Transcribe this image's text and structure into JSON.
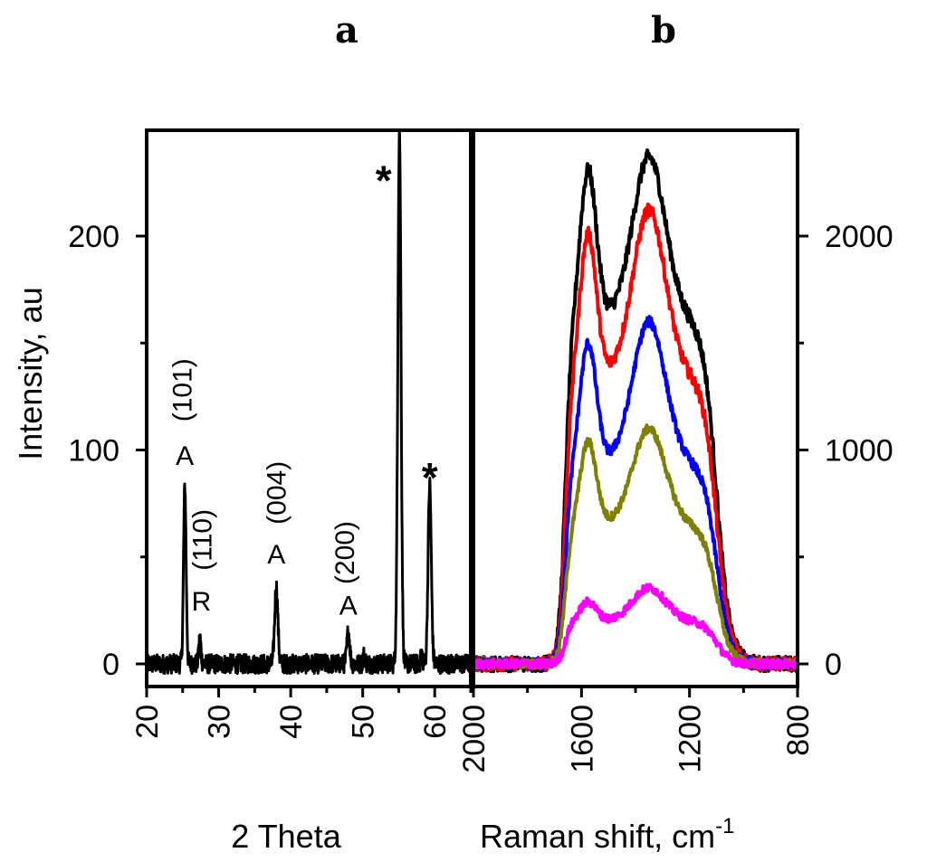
{
  "chart_data": [
    {
      "type": "line",
      "panel_label": "a",
      "xlabel": "2 Theta",
      "ylabel": "Intensity, au",
      "xlim": [
        20,
        65
      ],
      "ylim": [
        -10,
        250
      ],
      "xticks": [
        20,
        30,
        40,
        50,
        60
      ],
      "yticks": [
        0,
        100,
        200
      ],
      "grid": false,
      "series": [
        {
          "color": "#000000",
          "peaks": [
            {
              "x": 25.3,
              "y": 83
            },
            {
              "x": 27.4,
              "y": 12
            },
            {
              "x": 38.0,
              "y": 36
            },
            {
              "x": 48.0,
              "y": 15
            },
            {
              "x": 55.1,
              "y": 250
            },
            {
              "x": 59.3,
              "y": 84
            }
          ]
        }
      ],
      "annotations": [
        {
          "text": "A",
          "x": 25.3,
          "y": 93
        },
        {
          "text": "(101)",
          "x": 26.2,
          "y": 128,
          "rotated": true
        },
        {
          "text": "R",
          "x": 27.6,
          "y": 25
        },
        {
          "text": "(110)",
          "x": 29.0,
          "y": 58,
          "rotated": true
        },
        {
          "text": "A",
          "x": 38.0,
          "y": 47
        },
        {
          "text": "(004)",
          "x": 39.3,
          "y": 80,
          "rotated": true
        },
        {
          "text": "A",
          "x": 48.0,
          "y": 23
        },
        {
          "text": "(200)",
          "x": 48.8,
          "y": 52,
          "rotated": true
        },
        {
          "text": "*",
          "x": 52.9,
          "y": 232
        },
        {
          "text": "*",
          "x": 59.3,
          "y": 93
        }
      ]
    },
    {
      "type": "line",
      "panel_label": "b",
      "xlabel": "Raman shift, cm",
      "xlabel_superscript": "-1",
      "xlim": [
        2000,
        800
      ],
      "ylim": [
        -100,
        2500
      ],
      "xticks": [
        2000,
        1600,
        1200,
        800
      ],
      "yticks": [
        0,
        1000,
        2000
      ],
      "y_axis_side": "right",
      "grid": false,
      "series": [
        {
          "color": "#000000",
          "d_peak": 2310,
          "valley": 1880,
          "g_peak": 2370
        },
        {
          "color": "#ff0000",
          "d_peak": 2010,
          "valley": 1570,
          "g_peak": 2120
        },
        {
          "color": "#0000ff",
          "d_peak": 1500,
          "valley": 1100,
          "g_peak": 1600
        },
        {
          "color": "#808000",
          "d_peak": 1040,
          "valley": 760,
          "g_peak": 1100
        },
        {
          "color": "#ff00ff",
          "d_peak": 290,
          "valley": 235,
          "g_peak": 355
        }
      ]
    }
  ]
}
